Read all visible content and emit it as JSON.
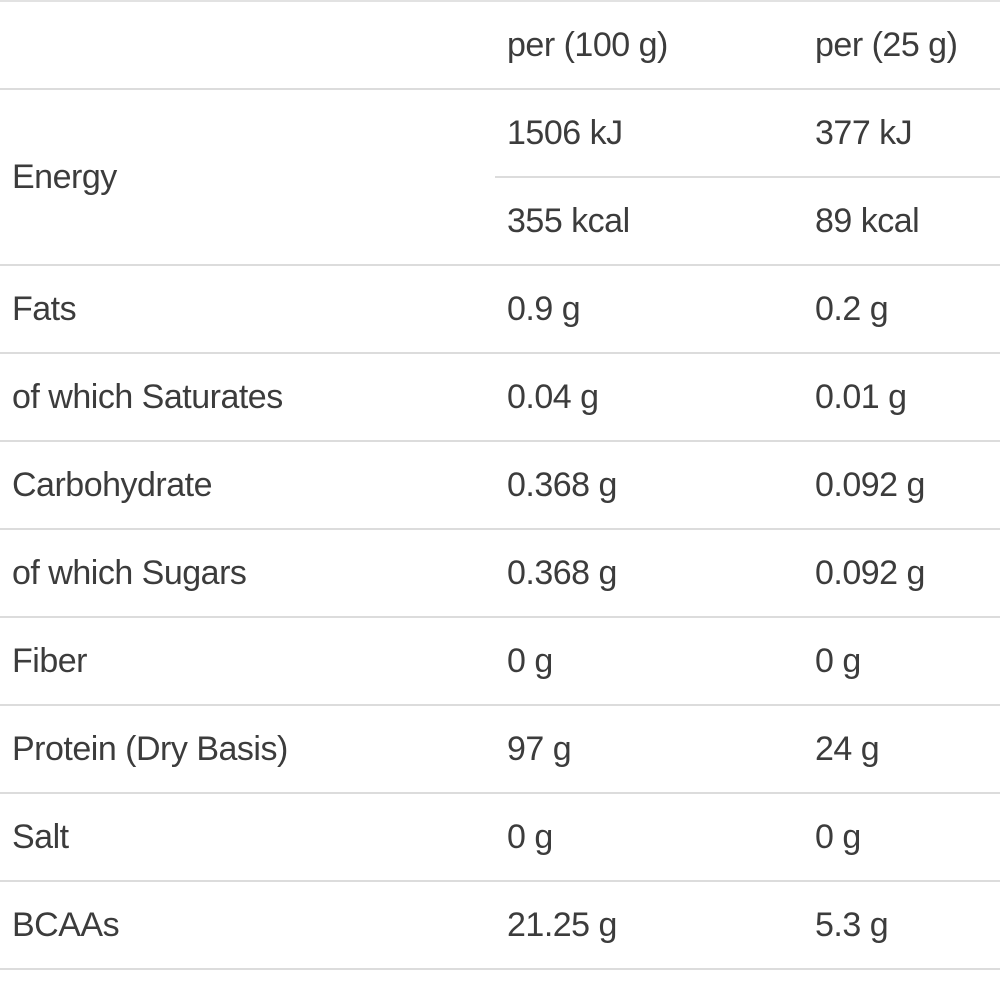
{
  "header": {
    "col_label": "",
    "col_100": "per (100 g)",
    "col_25": "per (25 g)"
  },
  "energy": {
    "label": "Energy",
    "kj_100": "1506 kJ",
    "kj_25": "377 kJ",
    "kcal_100": "355 kcal",
    "kcal_25": "89 kcal"
  },
  "rows": [
    {
      "label": "Fats",
      "per100": "0.9 g",
      "per25": "0.2 g"
    },
    {
      "label": "of which Saturates",
      "per100": "0.04 g",
      "per25": "0.01 g"
    },
    {
      "label": "Carbohydrate",
      "per100": "0.368 g",
      "per25": "0.092 g"
    },
    {
      "label": "of which Sugars",
      "per100": "0.368 g",
      "per25": "0.092 g"
    },
    {
      "label": "Fiber",
      "per100": "0 g",
      "per25": "0 g"
    },
    {
      "label": "Protein (Dry Basis)",
      "per100": "97 g",
      "per25": "24 g"
    },
    {
      "label": "Salt",
      "per100": "0 g",
      "per25": "0 g"
    },
    {
      "label": "BCAAs",
      "per100": "21.25 g",
      "per25": "5.3 g"
    }
  ]
}
